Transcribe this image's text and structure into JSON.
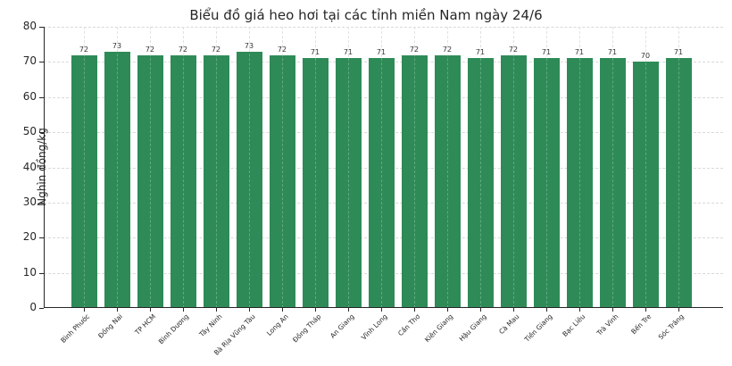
{
  "chart_data": {
    "type": "bar",
    "title": "Biểu đồ giá heo hơi tại các tỉnh miền Nam ngày 24/6",
    "xlabel": "",
    "ylabel": "Nghìn đồng/kg",
    "ylim": [
      0,
      80
    ],
    "yticks": [
      0,
      10,
      20,
      30,
      40,
      50,
      60,
      70,
      80
    ],
    "grid": true,
    "bar_color": "#2e8b57",
    "categories": [
      "Bình Phước",
      "Đồng Nai",
      "TP HCM",
      "Bình Dương",
      "Tây Ninh",
      "Bà Rịa  Vũng Tàu",
      "Long An",
      "Đồng Tháp",
      "An Giang",
      "Vĩnh Long",
      "Cần Thơ",
      "Kiên Giang",
      "Hậu Giang",
      "Cà Mau",
      "Tiền Giang",
      "Bạc Liêu",
      "Trà Vinh",
      "Bến Tre",
      "Sóc Trăng"
    ],
    "values": [
      72,
      73,
      72,
      72,
      72,
      73,
      72,
      71,
      71,
      71,
      72,
      72,
      71,
      72,
      71,
      71,
      71,
      70,
      71
    ]
  }
}
